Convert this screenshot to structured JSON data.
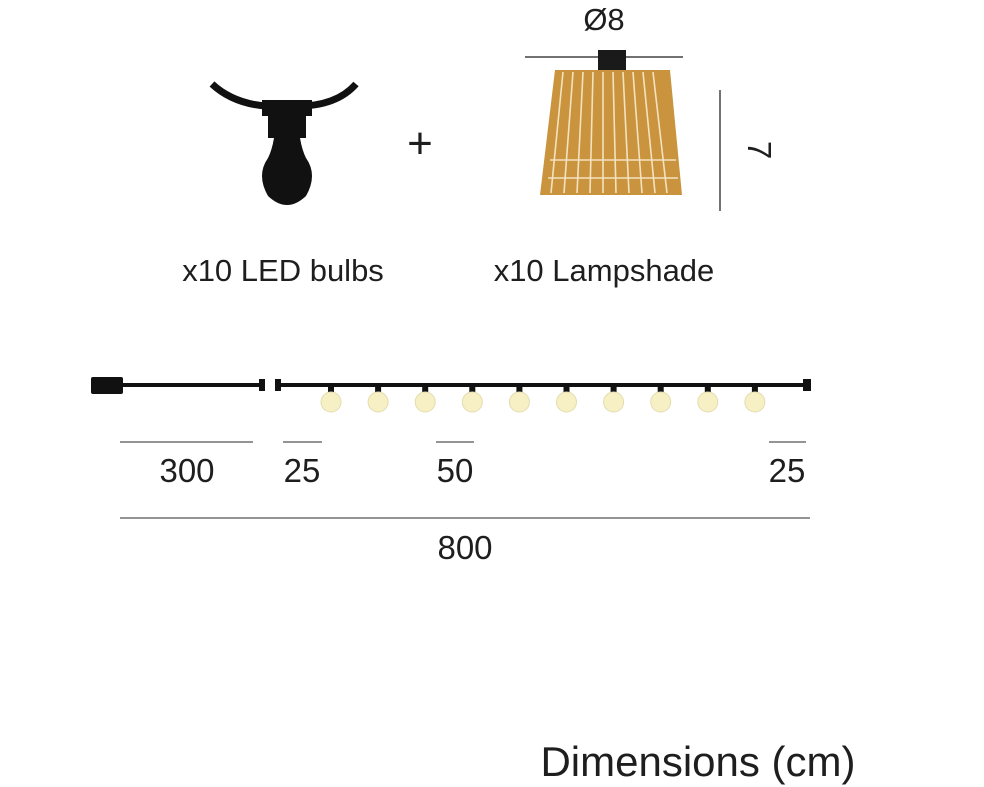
{
  "items": [
    {
      "label": "x10 LED bulbs"
    },
    {
      "label": "x10 Lampshade"
    }
  ],
  "plus": "+",
  "lampshade": {
    "diameter": "Ø8",
    "height": "7"
  },
  "dimensions": {
    "cable": 300,
    "start_gap": 25,
    "spacing": 50,
    "end_gap": 25,
    "total": 800
  },
  "caption": "Dimensions (cm)"
}
